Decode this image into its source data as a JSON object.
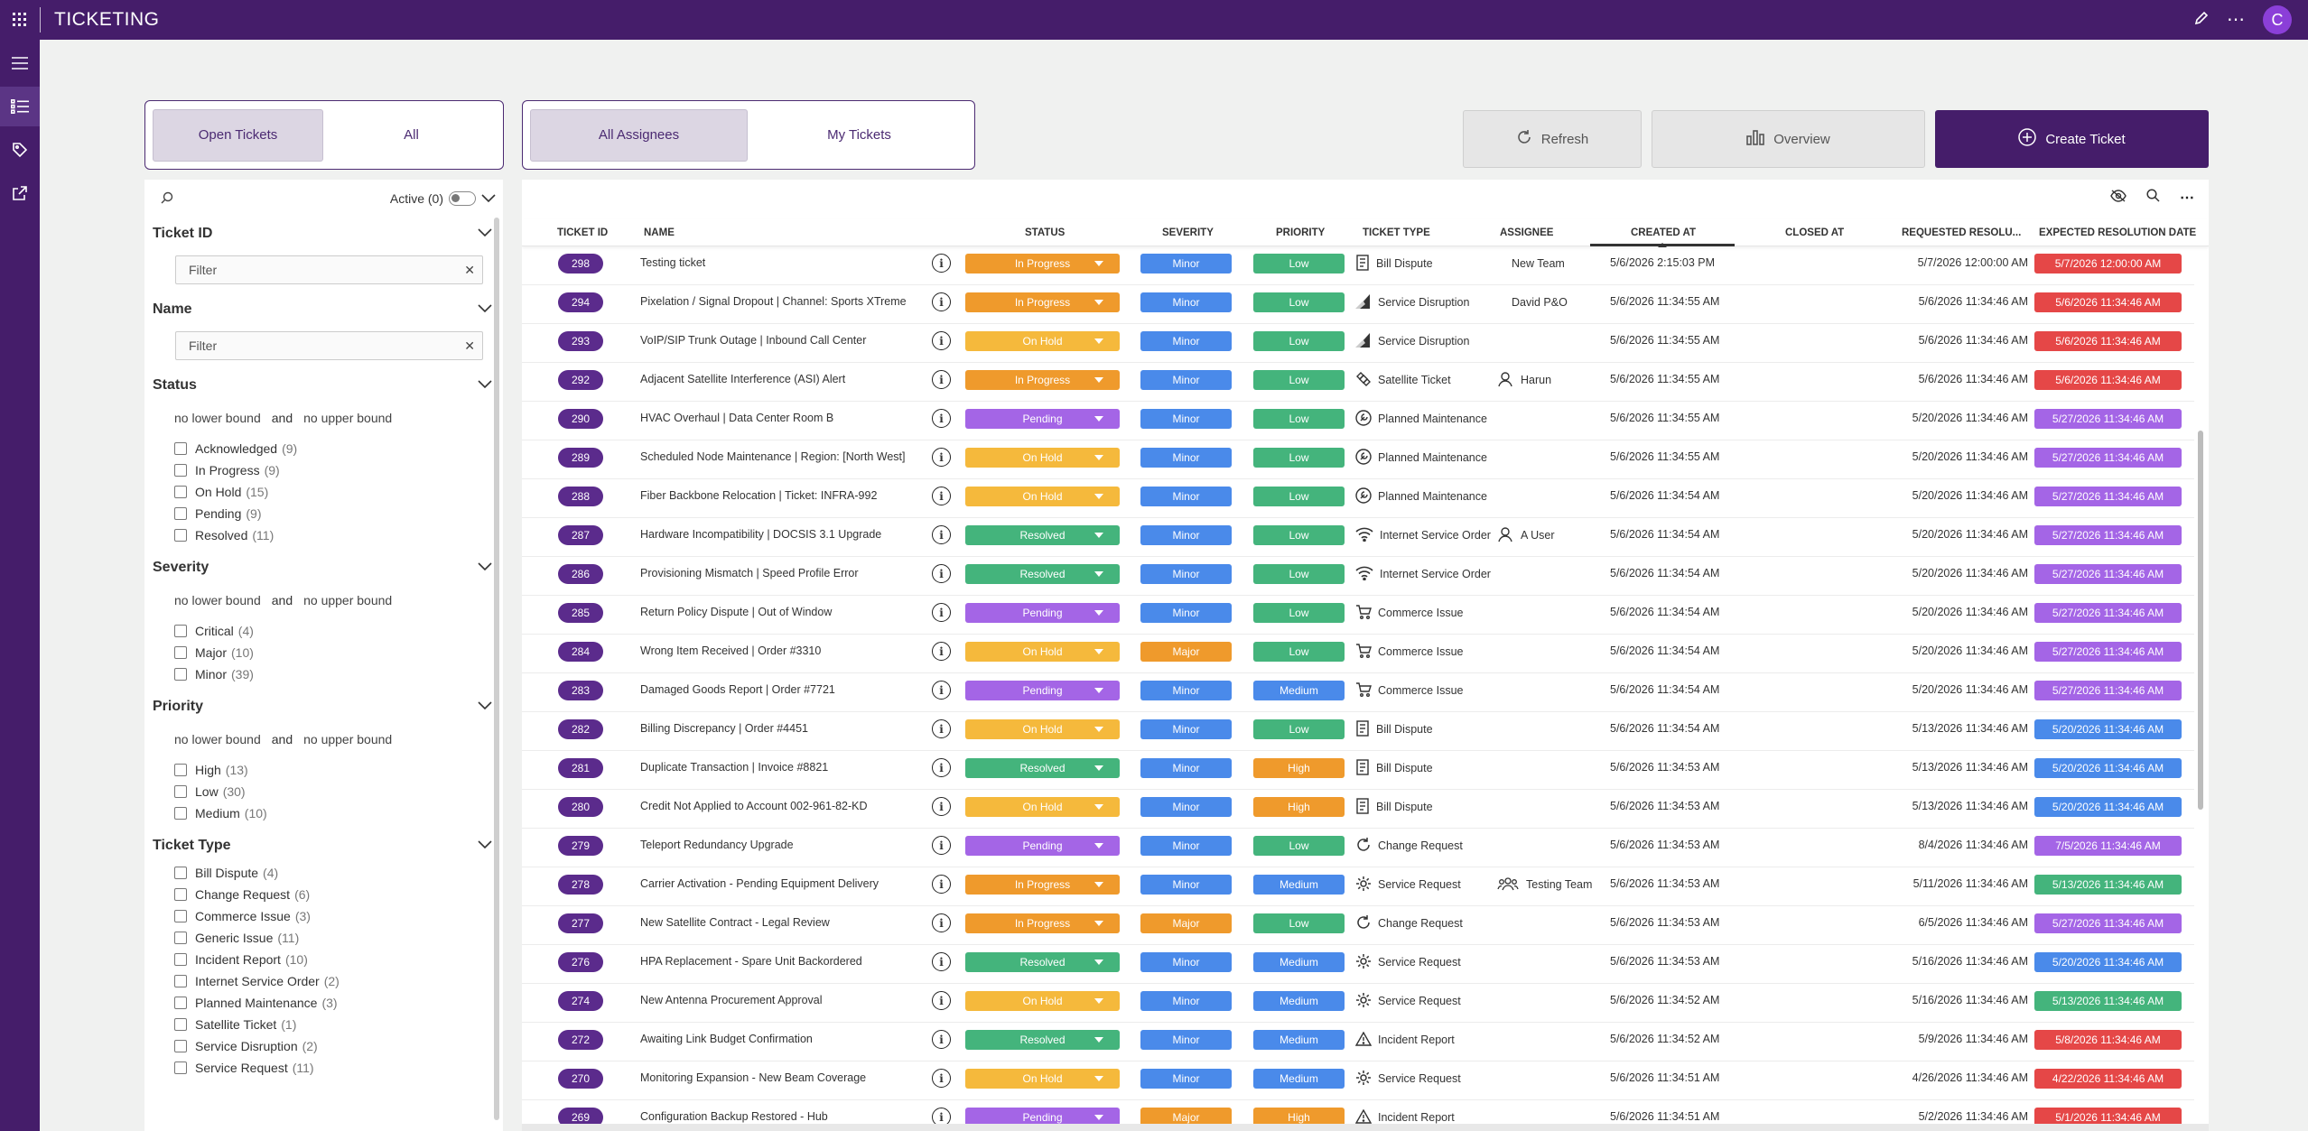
{
  "app": {
    "title": "TICKETING",
    "avatar_initial": "C"
  },
  "colors": {
    "accent": "#451d6a",
    "in_progress": "#ef9a2c",
    "on_hold": "#f5b93c",
    "pending": "#a465e6",
    "resolved": "#44b47c",
    "minor": "#4a8aea",
    "major": "#ef9a2c",
    "low": "#44b47c",
    "medium": "#4a8aea",
    "high": "#ef9a2c",
    "overdue": "#e54747",
    "purple": "#a465e6",
    "blue": "#4a8aea",
    "green": "#44b47c"
  },
  "toggles": {
    "scope": {
      "open": "Open Tickets",
      "all": "All",
      "selected": "Open Tickets"
    },
    "assignees": {
      "all": "All Assignees",
      "mine": "My Tickets",
      "selected": "All Assignees"
    }
  },
  "toolbar": {
    "refresh": "Refresh",
    "overview": "Overview",
    "create": "Create Ticket"
  },
  "filters": {
    "active_label": "Active (0)",
    "ticket_id": {
      "title": "Ticket ID",
      "placeholder": "Filter"
    },
    "name": {
      "title": "Name",
      "placeholder": "Filter"
    },
    "status": {
      "title": "Status",
      "lower": "no lower bound",
      "and": "and",
      "upper": "no upper bound",
      "options": [
        {
          "label": "Acknowledged",
          "count": "(9)"
        },
        {
          "label": "In Progress",
          "count": "(9)"
        },
        {
          "label": "On Hold",
          "count": "(15)"
        },
        {
          "label": "Pending",
          "count": "(9)"
        },
        {
          "label": "Resolved",
          "count": "(11)"
        }
      ]
    },
    "severity": {
      "title": "Severity",
      "lower": "no lower bound",
      "and": "and",
      "upper": "no upper bound",
      "options": [
        {
          "label": "Critical",
          "count": "(4)"
        },
        {
          "label": "Major",
          "count": "(10)"
        },
        {
          "label": "Minor",
          "count": "(39)"
        }
      ]
    },
    "priority": {
      "title": "Priority",
      "lower": "no lower bound",
      "and": "and",
      "upper": "no upper bound",
      "options": [
        {
          "label": "High",
          "count": "(13)"
        },
        {
          "label": "Low",
          "count": "(30)"
        },
        {
          "label": "Medium",
          "count": "(10)"
        }
      ]
    },
    "ticket_type": {
      "title": "Ticket Type",
      "options": [
        {
          "label": "Bill Dispute",
          "count": "(4)"
        },
        {
          "label": "Change Request",
          "count": "(6)"
        },
        {
          "label": "Commerce Issue",
          "count": "(3)"
        },
        {
          "label": "Generic Issue",
          "count": "(11)"
        },
        {
          "label": "Incident Report",
          "count": "(10)"
        },
        {
          "label": "Internet Service Order",
          "count": "(2)"
        },
        {
          "label": "Planned Maintenance",
          "count": "(3)"
        },
        {
          "label": "Satellite Ticket",
          "count": "(1)"
        },
        {
          "label": "Service Disruption",
          "count": "(2)"
        },
        {
          "label": "Service Request",
          "count": "(11)"
        }
      ]
    }
  },
  "columns": {
    "id": "TICKET ID",
    "name": "NAME",
    "status": "STATUS",
    "severity": "SEVERITY",
    "priority": "PRIORITY",
    "type": "TICKET TYPE",
    "assignee": "ASSIGNEE",
    "created": "CREATED AT",
    "closed": "CLOSED AT",
    "requested": "REQUESTED RESOLU...",
    "expected": "EXPECTED RESOLUTION DATE"
  },
  "rows": [
    {
      "id": "298",
      "name": "Testing ticket",
      "status": "In Progress",
      "severity": "Minor",
      "priority": "Low",
      "type": "Bill Dispute",
      "type_icon": "bill",
      "assignee": "New Team",
      "assignee_icon": "",
      "created": "5/6/2026 2:15:03 PM",
      "requested": "5/7/2026 12:00:00 AM",
      "expected": "5/7/2026 12:00:00 AM",
      "exp_color": "overdue"
    },
    {
      "id": "294",
      "name": "Pixelation / Signal Dropout | Channel: Sports XTreme",
      "status": "In Progress",
      "severity": "Minor",
      "priority": "Low",
      "type": "Service Disruption",
      "type_icon": "signal",
      "assignee": "David P&O",
      "assignee_icon": "",
      "created": "5/6/2026 11:34:55 AM",
      "requested": "5/6/2026 11:34:46 AM",
      "expected": "5/6/2026 11:34:46 AM",
      "exp_color": "overdue"
    },
    {
      "id": "293",
      "name": "VoIP/SIP Trunk Outage | Inbound Call Center",
      "status": "On Hold",
      "severity": "Minor",
      "priority": "Low",
      "type": "Service Disruption",
      "type_icon": "signal",
      "assignee": "",
      "assignee_icon": "",
      "created": "5/6/2026 11:34:55 AM",
      "requested": "5/6/2026 11:34:46 AM",
      "expected": "5/6/2026 11:34:46 AM",
      "exp_color": "overdue"
    },
    {
      "id": "292",
      "name": "Adjacent Satellite Interference (ASI) Alert",
      "status": "In Progress",
      "severity": "Minor",
      "priority": "Low",
      "type": "Satellite Ticket",
      "type_icon": "satellite",
      "assignee": "Harun",
      "assignee_icon": "person",
      "created": "5/6/2026 11:34:55 AM",
      "requested": "5/6/2026 11:34:46 AM",
      "expected": "5/6/2026 11:34:46 AM",
      "exp_color": "overdue"
    },
    {
      "id": "290",
      "name": "HVAC Overhaul | Data Center Room B",
      "status": "Pending",
      "severity": "Minor",
      "priority": "Low",
      "type": "Planned Maintenance",
      "type_icon": "wrench",
      "assignee": "",
      "assignee_icon": "",
      "created": "5/6/2026 11:34:55 AM",
      "requested": "5/20/2026 11:34:46 AM",
      "expected": "5/27/2026 11:34:46 AM",
      "exp_color": "purple"
    },
    {
      "id": "289",
      "name": "Scheduled Node Maintenance | Region: [North West]",
      "status": "On Hold",
      "severity": "Minor",
      "priority": "Low",
      "type": "Planned Maintenance",
      "type_icon": "wrench",
      "assignee": "",
      "assignee_icon": "",
      "created": "5/6/2026 11:34:55 AM",
      "requested": "5/20/2026 11:34:46 AM",
      "expected": "5/27/2026 11:34:46 AM",
      "exp_color": "purple"
    },
    {
      "id": "288",
      "name": "Fiber Backbone Relocation | Ticket: INFRA-992",
      "status": "On Hold",
      "severity": "Minor",
      "priority": "Low",
      "type": "Planned Maintenance",
      "type_icon": "wrench",
      "assignee": "",
      "assignee_icon": "",
      "created": "5/6/2026 11:34:54 AM",
      "requested": "5/20/2026 11:34:46 AM",
      "expected": "5/27/2026 11:34:46 AM",
      "exp_color": "purple"
    },
    {
      "id": "287",
      "name": "Hardware Incompatibility | DOCSIS 3.1 Upgrade",
      "status": "Resolved",
      "severity": "Minor",
      "priority": "Low",
      "type": "Internet Service Order",
      "type_icon": "wifi",
      "assignee": "A User",
      "assignee_icon": "person",
      "created": "5/6/2026 11:34:54 AM",
      "requested": "5/20/2026 11:34:46 AM",
      "expected": "5/27/2026 11:34:46 AM",
      "exp_color": "purple"
    },
    {
      "id": "286",
      "name": "Provisioning Mismatch | Speed Profile Error",
      "status": "Resolved",
      "severity": "Minor",
      "priority": "Low",
      "type": "Internet Service Order",
      "type_icon": "wifi",
      "assignee": "",
      "assignee_icon": "",
      "created": "5/6/2026 11:34:54 AM",
      "requested": "5/20/2026 11:34:46 AM",
      "expected": "5/27/2026 11:34:46 AM",
      "exp_color": "purple"
    },
    {
      "id": "285",
      "name": "Return Policy Dispute | Out of Window",
      "status": "Pending",
      "severity": "Minor",
      "priority": "Low",
      "type": "Commerce Issue",
      "type_icon": "cart",
      "assignee": "",
      "assignee_icon": "",
      "created": "5/6/2026 11:34:54 AM",
      "requested": "5/20/2026 11:34:46 AM",
      "expected": "5/27/2026 11:34:46 AM",
      "exp_color": "purple"
    },
    {
      "id": "284",
      "name": "Wrong Item Received | Order #3310",
      "status": "On Hold",
      "severity": "Major",
      "priority": "Low",
      "type": "Commerce Issue",
      "type_icon": "cart",
      "assignee": "",
      "assignee_icon": "",
      "created": "5/6/2026 11:34:54 AM",
      "requested": "5/20/2026 11:34:46 AM",
      "expected": "5/27/2026 11:34:46 AM",
      "exp_color": "purple"
    },
    {
      "id": "283",
      "name": "Damaged Goods Report | Order #7721",
      "status": "Pending",
      "severity": "Minor",
      "priority": "Medium",
      "type": "Commerce Issue",
      "type_icon": "cart",
      "assignee": "",
      "assignee_icon": "",
      "created": "5/6/2026 11:34:54 AM",
      "requested": "5/20/2026 11:34:46 AM",
      "expected": "5/27/2026 11:34:46 AM",
      "exp_color": "purple"
    },
    {
      "id": "282",
      "name": "Billing Discrepancy | Order #4451",
      "status": "On Hold",
      "severity": "Minor",
      "priority": "Low",
      "type": "Bill Dispute",
      "type_icon": "bill",
      "assignee": "",
      "assignee_icon": "",
      "created": "5/6/2026 11:34:54 AM",
      "requested": "5/13/2026 11:34:46 AM",
      "expected": "5/20/2026 11:34:46 AM",
      "exp_color": "blue"
    },
    {
      "id": "281",
      "name": "Duplicate Transaction | Invoice #8821",
      "status": "Resolved",
      "severity": "Minor",
      "priority": "High",
      "type": "Bill Dispute",
      "type_icon": "bill",
      "assignee": "",
      "assignee_icon": "",
      "created": "5/6/2026 11:34:53 AM",
      "requested": "5/13/2026 11:34:46 AM",
      "expected": "5/20/2026 11:34:46 AM",
      "exp_color": "blue"
    },
    {
      "id": "280",
      "name": "Credit Not Applied to Account 002-961-82-KD",
      "status": "On Hold",
      "severity": "Minor",
      "priority": "High",
      "type": "Bill Dispute",
      "type_icon": "bill",
      "assignee": "",
      "assignee_icon": "",
      "created": "5/6/2026 11:34:53 AM",
      "requested": "5/13/2026 11:34:46 AM",
      "expected": "5/20/2026 11:34:46 AM",
      "exp_color": "blue"
    },
    {
      "id": "279",
      "name": "Teleport Redundancy Upgrade",
      "status": "Pending",
      "severity": "Minor",
      "priority": "Low",
      "type": "Change Request",
      "type_icon": "change",
      "assignee": "",
      "assignee_icon": "",
      "created": "5/6/2026 11:34:53 AM",
      "requested": "8/4/2026 11:34:46 AM",
      "expected": "7/5/2026 11:34:46 AM",
      "exp_color": "purple"
    },
    {
      "id": "278",
      "name": "Carrier Activation - Pending Equipment Delivery",
      "status": "In Progress",
      "severity": "Minor",
      "priority": "Medium",
      "type": "Service Request",
      "type_icon": "gear",
      "assignee": "Testing Team",
      "assignee_icon": "team",
      "created": "5/6/2026 11:34:53 AM",
      "requested": "5/11/2026 11:34:46 AM",
      "expected": "5/13/2026 11:34:46 AM",
      "exp_color": "green"
    },
    {
      "id": "277",
      "name": "New Satellite Contract - Legal Review",
      "status": "In Progress",
      "severity": "Major",
      "priority": "Low",
      "type": "Change Request",
      "type_icon": "change",
      "assignee": "",
      "assignee_icon": "",
      "created": "5/6/2026 11:34:53 AM",
      "requested": "6/5/2026 11:34:46 AM",
      "expected": "5/27/2026 11:34:46 AM",
      "exp_color": "purple"
    },
    {
      "id": "276",
      "name": "HPA Replacement - Spare Unit Backordered",
      "status": "Resolved",
      "severity": "Minor",
      "priority": "Medium",
      "type": "Service Request",
      "type_icon": "gear",
      "assignee": "",
      "assignee_icon": "",
      "created": "5/6/2026 11:34:53 AM",
      "requested": "5/16/2026 11:34:46 AM",
      "expected": "5/20/2026 11:34:46 AM",
      "exp_color": "blue"
    },
    {
      "id": "274",
      "name": "New Antenna Procurement Approval",
      "status": "On Hold",
      "severity": "Minor",
      "priority": "Medium",
      "type": "Service Request",
      "type_icon": "gear",
      "assignee": "",
      "assignee_icon": "",
      "created": "5/6/2026 11:34:52 AM",
      "requested": "5/16/2026 11:34:46 AM",
      "expected": "5/13/2026 11:34:46 AM",
      "exp_color": "green"
    },
    {
      "id": "272",
      "name": "Awaiting Link Budget Confirmation",
      "status": "Resolved",
      "severity": "Minor",
      "priority": "Medium",
      "type": "Incident Report",
      "type_icon": "warning",
      "assignee": "",
      "assignee_icon": "",
      "created": "5/6/2026 11:34:52 AM",
      "requested": "5/9/2026 11:34:46 AM",
      "expected": "5/8/2026 11:34:46 AM",
      "exp_color": "overdue"
    },
    {
      "id": "270",
      "name": "Monitoring Expansion - New Beam Coverage",
      "status": "On Hold",
      "severity": "Minor",
      "priority": "Medium",
      "type": "Service Request",
      "type_icon": "gear",
      "assignee": "",
      "assignee_icon": "",
      "created": "5/6/2026 11:34:51 AM",
      "requested": "4/26/2026 11:34:46 AM",
      "expected": "4/22/2026 11:34:46 AM",
      "exp_color": "overdue"
    },
    {
      "id": "269",
      "name": "Configuration Backup Restored - Hub",
      "status": "Pending",
      "severity": "Major",
      "priority": "High",
      "type": "Incident Report",
      "type_icon": "warning",
      "assignee": "",
      "assignee_icon": "",
      "created": "5/6/2026 11:34:51 AM",
      "requested": "5/2/2026 11:34:46 AM",
      "expected": "5/1/2026 11:34:46 AM",
      "exp_color": "overdue"
    }
  ]
}
